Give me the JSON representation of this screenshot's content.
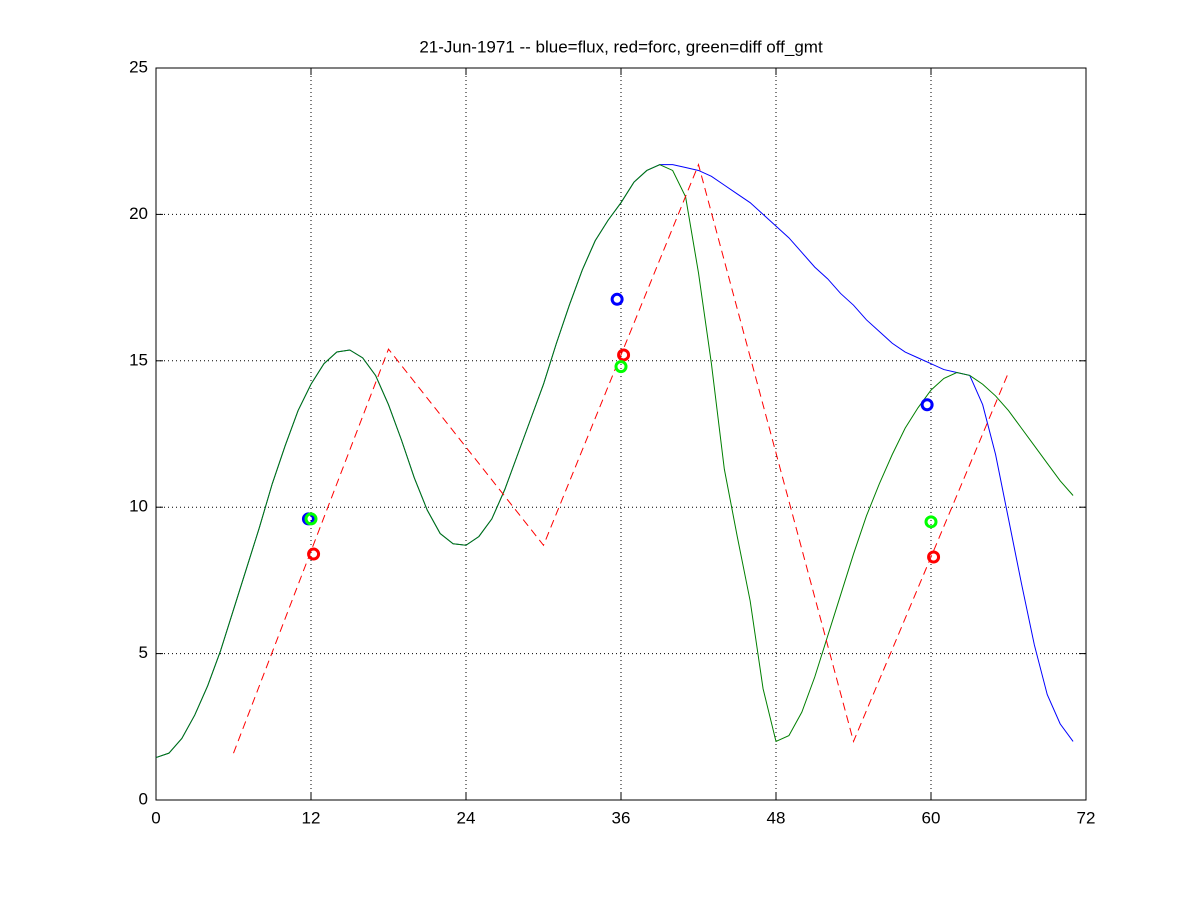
{
  "chart_data": {
    "type": "line",
    "title": "21-Jun-1971 -- blue=flux, red=forc, green=diff off_gmt",
    "xlim": [
      0,
      72
    ],
    "xticks": [
      0,
      12,
      24,
      36,
      48,
      60,
      72
    ],
    "ylim": [
      0,
      25
    ],
    "yticks": [
      0,
      5,
      10,
      15,
      20,
      25
    ],
    "grid": true,
    "series": [
      {
        "color": "#0000ff",
        "style": "solid",
        "x": [
          0,
          1,
          2,
          3,
          4,
          5,
          6,
          7,
          8,
          9,
          10,
          11,
          12,
          13,
          14,
          15,
          16,
          17,
          18,
          19,
          20,
          21,
          22,
          23,
          24,
          25,
          26,
          27,
          28,
          29,
          30,
          31,
          32,
          33,
          34,
          35,
          36,
          37,
          38,
          39,
          40,
          41,
          42,
          43,
          44,
          45,
          46,
          47,
          48,
          49,
          50,
          51,
          52,
          53,
          54,
          55,
          56,
          57,
          58,
          59,
          60,
          61,
          62,
          63,
          64,
          65,
          66,
          67,
          68,
          69,
          70,
          71
        ],
        "values": [
          1.45,
          1.6,
          2.1,
          2.9,
          3.9,
          5.1,
          6.5,
          7.9,
          9.3,
          10.8,
          12.1,
          13.3,
          14.2,
          14.9,
          15.3,
          15.37,
          15.1,
          14.5,
          13.5,
          12.3,
          11.0,
          9.9,
          9.1,
          8.75,
          8.7,
          9.0,
          9.6,
          10.6,
          11.8,
          13.0,
          14.2,
          15.6,
          16.9,
          18.1,
          19.1,
          19.8,
          20.4,
          21.1,
          21.5,
          21.7,
          21.7,
          21.6,
          21.5,
          21.3,
          21.0,
          20.7,
          20.4,
          20.0,
          19.6,
          19.2,
          18.7,
          18.2,
          17.8,
          17.3,
          16.9,
          16.4,
          16.0,
          15.6,
          15.3,
          15.1,
          14.9,
          14.7,
          14.6,
          14.5,
          13.5,
          11.8,
          9.6,
          7.4,
          5.3,
          3.6,
          2.6,
          2.0
        ]
      },
      {
        "color": "#007f00",
        "style": "solid",
        "x": [
          0,
          1,
          2,
          3,
          4,
          5,
          6,
          7,
          8,
          9,
          10,
          11,
          12,
          13,
          14,
          15,
          16,
          17,
          18,
          19,
          20,
          21,
          22,
          23,
          24,
          25,
          26,
          27,
          28,
          29,
          30,
          31,
          32,
          33,
          34,
          35,
          36,
          37,
          38,
          39,
          40,
          41,
          42,
          43,
          44,
          45,
          46,
          47,
          48,
          49,
          50,
          51,
          52,
          53,
          54,
          55,
          56,
          57,
          58,
          59,
          60,
          61,
          62,
          63,
          64,
          65,
          66,
          67,
          68,
          69,
          70,
          71
        ],
        "values": [
          1.45,
          1.6,
          2.1,
          2.9,
          3.9,
          5.1,
          6.5,
          7.9,
          9.3,
          10.8,
          12.1,
          13.3,
          14.2,
          14.9,
          15.3,
          15.37,
          15.1,
          14.5,
          13.5,
          12.3,
          11.0,
          9.9,
          9.1,
          8.75,
          8.7,
          9.0,
          9.6,
          10.6,
          11.8,
          13.0,
          14.2,
          15.6,
          16.9,
          18.1,
          19.1,
          19.8,
          20.4,
          21.1,
          21.5,
          21.7,
          21.5,
          20.6,
          18.0,
          14.9,
          11.3,
          9.0,
          6.8,
          3.8,
          2.0,
          2.2,
          3.0,
          4.2,
          5.6,
          7.0,
          8.4,
          9.7,
          10.8,
          11.8,
          12.7,
          13.4,
          14.0,
          14.4,
          14.6,
          14.5,
          14.2,
          13.8,
          13.3,
          12.7,
          12.1,
          11.5,
          10.9,
          10.4
        ]
      },
      {
        "color": "#ff0000",
        "style": "dashed",
        "x": [
          6,
          18,
          30,
          42,
          54,
          66
        ],
        "values": [
          1.6,
          15.4,
          8.7,
          21.7,
          2.0,
          14.6
        ]
      },
      {
        "color": "#0000ff",
        "style": "circle",
        "x": [
          11.8,
          35.7,
          59.7
        ],
        "values": [
          9.6,
          17.1,
          13.5
        ]
      },
      {
        "color": "#ff0000",
        "style": "circle",
        "x": [
          12.2,
          36.2,
          60.2
        ],
        "values": [
          8.4,
          15.2,
          8.3
        ]
      },
      {
        "color": "#00ff00",
        "style": "circle",
        "x": [
          12.0,
          36.0,
          60.0
        ],
        "values": [
          9.6,
          14.8,
          9.5
        ]
      }
    ]
  }
}
